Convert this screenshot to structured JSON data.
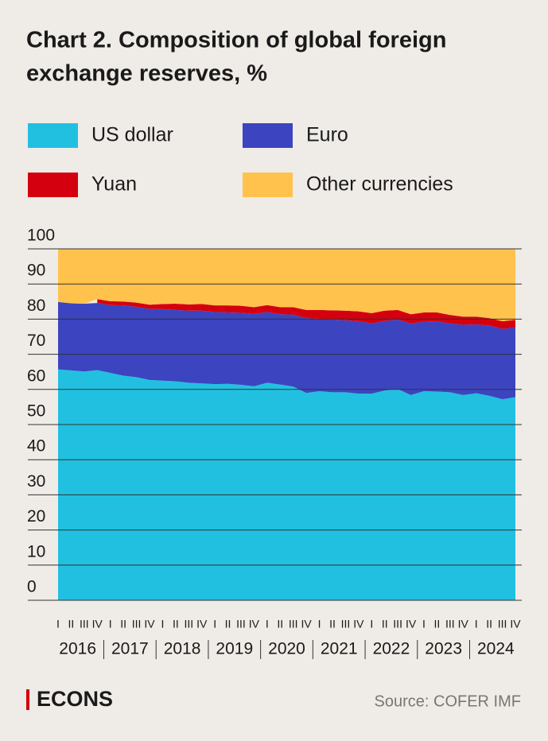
{
  "chart_data": {
    "type": "stacked-area",
    "title": "Chart 2. Composition of global foreign exchange reserves, %",
    "title_lines": [
      "Chart 2. Composition of global foreign",
      "exchange reserves, %"
    ],
    "categories": [
      "I",
      "II",
      "III",
      "IV",
      "I",
      "II",
      "III",
      "IV",
      "I",
      "II",
      "III",
      "IV",
      "I",
      "II",
      "III",
      "IV",
      "I",
      "II",
      "III",
      "IV",
      "I",
      "II",
      "III",
      "IV",
      "I",
      "II",
      "III",
      "IV",
      "I",
      "II",
      "III",
      "IV",
      "I",
      "II",
      "III",
      "IV"
    ],
    "years": [
      "2016",
      "2017",
      "2018",
      "2019",
      "2020",
      "2021",
      "2022",
      "2023",
      "2024"
    ],
    "series": [
      {
        "name": "US dollar",
        "color": "#21c0e0",
        "values": [
          65.7,
          65.4,
          65.1,
          65.5,
          64.7,
          63.9,
          63.5,
          62.7,
          62.5,
          62.3,
          61.9,
          61.7,
          61.5,
          61.6,
          61.3,
          60.9,
          61.9,
          61.4,
          60.8,
          59.0,
          59.5,
          59.2,
          59.2,
          58.8,
          58.8,
          59.7,
          60.1,
          58.4,
          59.5,
          59.4,
          59.2,
          58.4,
          58.9,
          58.2,
          57.2,
          57.8
        ]
      },
      {
        "name": "Euro",
        "color": "#3c44c0",
        "values": [
          19.2,
          19.1,
          19.3,
          19.1,
          19.3,
          20.0,
          20.0,
          20.2,
          20.4,
          20.3,
          20.5,
          20.7,
          20.5,
          20.3,
          20.5,
          20.6,
          20.1,
          20.0,
          20.5,
          21.3,
          20.6,
          20.7,
          20.5,
          20.6,
          20.0,
          19.8,
          19.8,
          20.4,
          19.8,
          20.0,
          19.6,
          20.0,
          19.6,
          20.0,
          20.0,
          19.8
        ]
      },
      {
        "name": "Yuan",
        "color": "#d4000f",
        "values": [
          null,
          null,
          null,
          1.1,
          1.1,
          1.1,
          1.2,
          1.2,
          1.4,
          1.8,
          1.8,
          1.9,
          1.9,
          2.0,
          2.0,
          1.9,
          2.0,
          2.0,
          2.1,
          2.3,
          2.5,
          2.6,
          2.7,
          2.8,
          2.9,
          2.9,
          2.7,
          2.6,
          2.6,
          2.5,
          2.4,
          2.3,
          2.2,
          2.1,
          2.2,
          2.2
        ]
      },
      {
        "name": "Other currencies",
        "color": "#ffc24c",
        "values": [
          15.1,
          15.5,
          15.6,
          14.3,
          14.9,
          15.0,
          15.3,
          15.9,
          15.7,
          15.6,
          15.8,
          15.7,
          16.1,
          16.1,
          16.2,
          16.6,
          16.0,
          16.6,
          16.6,
          17.4,
          17.4,
          17.5,
          17.6,
          17.8,
          18.3,
          17.6,
          17.4,
          18.6,
          18.1,
          18.1,
          18.8,
          19.3,
          19.3,
          19.7,
          20.6,
          20.2
        ]
      }
    ],
    "ylim": [
      0,
      100
    ],
    "yticks": [
      0,
      10,
      20,
      30,
      40,
      50,
      60,
      70,
      80,
      90,
      100
    ],
    "grid": true,
    "brand": "ECONS",
    "source": "Source: COFER IMF"
  }
}
